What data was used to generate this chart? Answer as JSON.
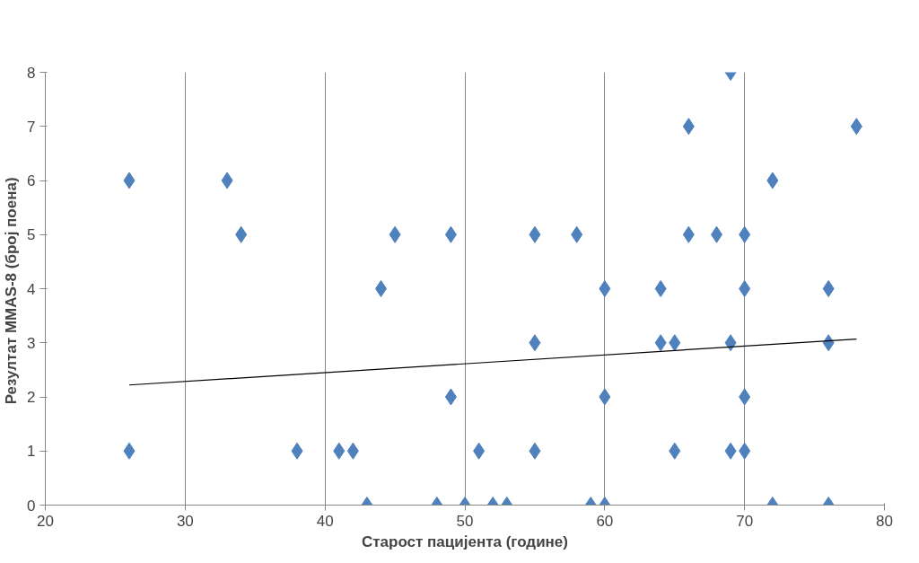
{
  "chart_data": {
    "type": "scatter",
    "xlabel": "Старост пацијента (године)",
    "ylabel": "Резултат  MMAS-8 (број поена)",
    "xlim": [
      20,
      80
    ],
    "xticks": [
      20,
      30,
      40,
      50,
      60,
      70,
      80
    ],
    "ylim": [
      0,
      8
    ],
    "yticks": [
      0,
      1,
      2,
      3,
      4,
      5,
      6,
      7,
      8
    ],
    "grid": "x",
    "series": [
      {
        "marker": "diamond",
        "color": "#4f81bd",
        "x": [
          26,
          26,
          33,
          34,
          38,
          41,
          42,
          43,
          44,
          45,
          48,
          49,
          49,
          50,
          51,
          52,
          53,
          55,
          55,
          55,
          58,
          59,
          60,
          60,
          60,
          64,
          64,
          65,
          65,
          66,
          66,
          68,
          69,
          69,
          69,
          70,
          70,
          70,
          70,
          72,
          72,
          76,
          76,
          76,
          78
        ],
        "values": [
          6,
          1,
          6,
          5,
          1,
          1,
          1,
          0,
          4,
          5,
          0,
          5,
          2,
          0,
          1,
          0,
          0,
          5,
          3,
          1,
          5,
          0,
          4,
          2,
          0,
          4,
          3,
          3,
          1,
          7,
          5,
          5,
          8,
          3,
          1,
          5,
          4,
          2,
          1,
          6,
          0,
          4,
          3,
          0,
          7
        ]
      },
      {
        "type": "line",
        "marker": "none",
        "line_style": "solid",
        "color": "#000000",
        "x": [
          26,
          78
        ],
        "values": [
          2.22,
          3.07
        ]
      }
    ]
  }
}
